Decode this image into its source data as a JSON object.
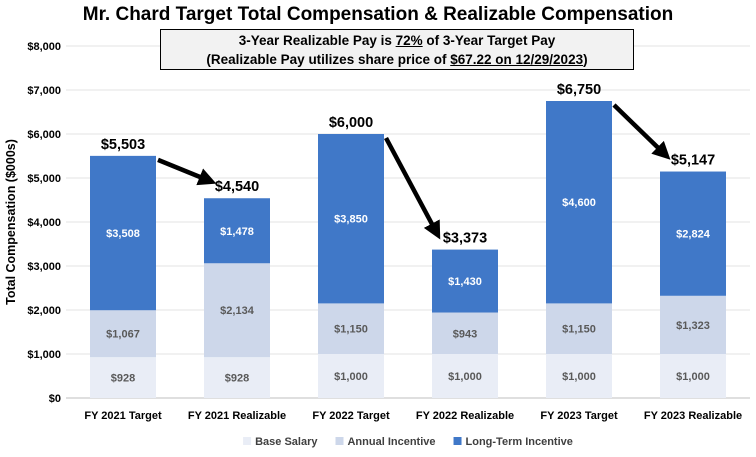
{
  "chart_data": {
    "type": "bar",
    "stacked": true,
    "title": "Mr. Chard Target Total Compensation & Realizable Compensation",
    "annotation": {
      "line1_pre": "3-Year Realizable Pay is ",
      "line1_pct": "72%",
      "line1_post": " of 3-Year Target Pay",
      "line2_pre": "(Realizable Pay utilizes share price of ",
      "line2_val": "$67.22 on 12/29/2023",
      "line2_post": ")"
    },
    "ylabel": "Total Compensation ($000s)",
    "ylim": [
      0,
      8000
    ],
    "yticks": [
      "$0",
      "$1,000",
      "$2,000",
      "$3,000",
      "$4,000",
      "$5,000",
      "$6,000",
      "$7,000",
      "$8,000"
    ],
    "categories": [
      "FY 2021 Target",
      "FY 2021 Realizable",
      "FY 2022 Target",
      "FY 2022 Realizable",
      "FY 2023 Target",
      "FY 2023 Realizable"
    ],
    "series": [
      {
        "name": "Base Salary",
        "color": "#E9EDF6",
        "values": [
          928,
          928,
          1000,
          1000,
          1000,
          1000
        ],
        "labels": [
          "$928",
          "$928",
          "$1,000",
          "$1,000",
          "$1,000",
          "$1,000"
        ]
      },
      {
        "name": "Annual Incentive",
        "color": "#CDD7EA",
        "values": [
          1067,
          2134,
          1150,
          943,
          1150,
          1323
        ],
        "labels": [
          "$1,067",
          "$2,134",
          "$1,150",
          "$943",
          "$1,150",
          "$1,323"
        ]
      },
      {
        "name": "Long-Term Incentive",
        "color": "#4078C8",
        "values": [
          3508,
          1478,
          3850,
          1430,
          4600,
          2824
        ],
        "labels": [
          "$3,508",
          "$1,478",
          "$3,850",
          "$1,430",
          "$4,600",
          "$2,824"
        ]
      }
    ],
    "totals": [
      "$5,503",
      "$4,540",
      "$6,000",
      "$3,373",
      "$6,750",
      "$5,147"
    ],
    "legend_position": "bottom",
    "grid": true
  }
}
